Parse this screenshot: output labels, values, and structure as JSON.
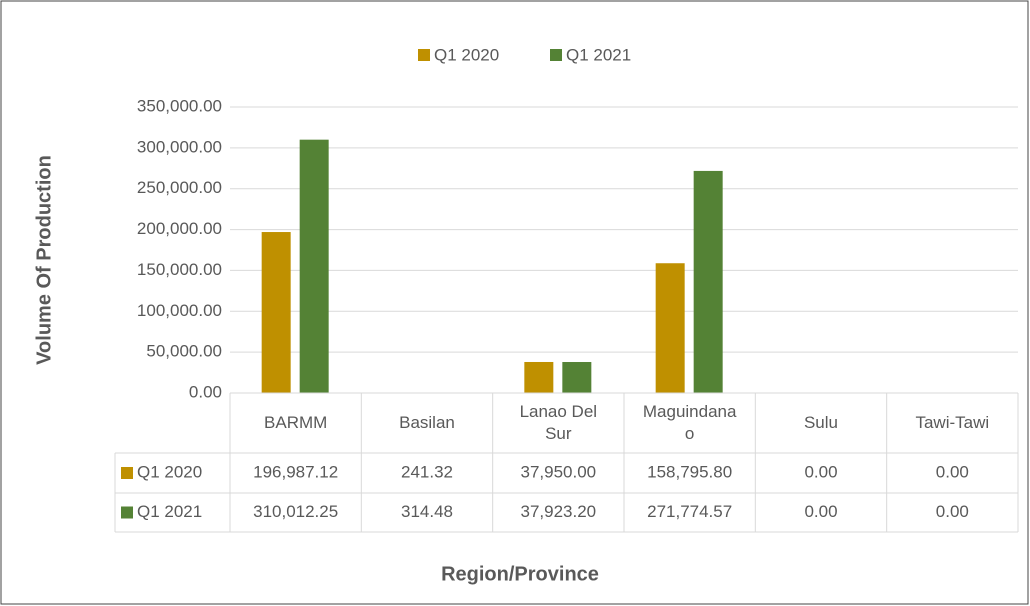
{
  "chart_data": {
    "type": "bar",
    "x_label": "Region/Province",
    "y_label": "Volume Of Production",
    "categories": [
      "BARMM",
      "Basilan",
      "Lanao Del Sur",
      "Maguindanao",
      "Sulu",
      "Tawi-Tawi"
    ],
    "series": [
      {
        "name": "Q1 2020",
        "color": "#bf9000",
        "values": [
          196987.12,
          241.32,
          37950.0,
          158795.8,
          0,
          0
        ],
        "value_labels": [
          "196,987.12",
          "241.32",
          "37,950.00",
          "158,795.80",
          "0.00",
          "0.00"
        ]
      },
      {
        "name": "Q1 2021",
        "color": "#548235",
        "values": [
          310012.25,
          314.48,
          37923.2,
          271774.57,
          0,
          0
        ],
        "value_labels": [
          "310,012.25",
          "314.48",
          "37,923.20",
          "271,774.57",
          "0.00",
          "0.00"
        ]
      }
    ],
    "ylim": [
      0,
      350000
    ],
    "yticks": [
      {
        "value": 0,
        "label": "0.00"
      },
      {
        "value": 50000,
        "label": "50,000.00"
      },
      {
        "value": 100000,
        "label": "100,000.00"
      },
      {
        "value": 150000,
        "label": "150,000.00"
      },
      {
        "value": 200000,
        "label": "200,000.00"
      },
      {
        "value": 250000,
        "label": "250,000.00"
      },
      {
        "value": 300000,
        "label": "300,000.00"
      },
      {
        "value": 350000,
        "label": "350,000.00"
      }
    ],
    "grid": true,
    "legend": "top"
  }
}
